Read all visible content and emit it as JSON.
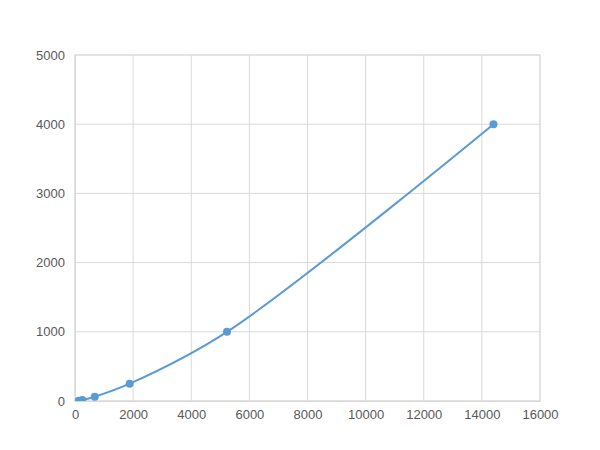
{
  "chart_data": {
    "type": "scatter",
    "x": [
      120,
      250,
      680,
      1880,
      5230,
      14400
    ],
    "values": [
      3.9,
      15.6,
      62.5,
      250,
      1000,
      4000
    ],
    "color": "#5b9bd5",
    "marker": "circle",
    "line_style": "smooth",
    "xlim": [
      0,
      16000
    ],
    "xticks": [
      0,
      2000,
      4000,
      6000,
      8000,
      10000,
      12000,
      14000,
      16000
    ],
    "ylim": [
      0,
      5000
    ],
    "yticks": [
      0,
      1000,
      2000,
      3000,
      4000,
      5000
    ],
    "grid": true
  }
}
